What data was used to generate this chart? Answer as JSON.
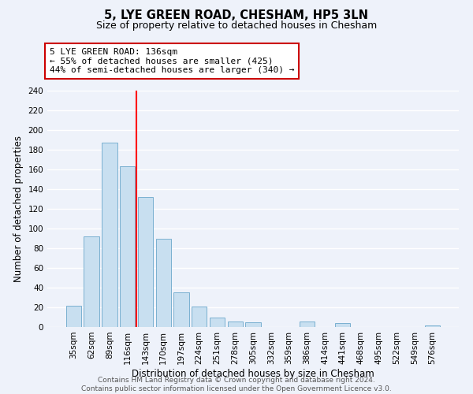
{
  "title": "5, LYE GREEN ROAD, CHESHAM, HP5 3LN",
  "subtitle": "Size of property relative to detached houses in Chesham",
  "xlabel": "Distribution of detached houses by size in Chesham",
  "ylabel": "Number of detached properties",
  "bar_labels": [
    "35sqm",
    "62sqm",
    "89sqm",
    "116sqm",
    "143sqm",
    "170sqm",
    "197sqm",
    "224sqm",
    "251sqm",
    "278sqm",
    "305sqm",
    "332sqm",
    "359sqm",
    "386sqm",
    "414sqm",
    "441sqm",
    "468sqm",
    "495sqm",
    "522sqm",
    "549sqm",
    "576sqm"
  ],
  "bar_heights": [
    22,
    92,
    187,
    163,
    132,
    90,
    35,
    21,
    10,
    6,
    5,
    0,
    0,
    6,
    0,
    4,
    0,
    0,
    0,
    0,
    2
  ],
  "bar_color": "#c8dff0",
  "bar_edge_color": "#7ab0d0",
  "property_line_index": 3.5,
  "annotation_text1": "5 LYE GREEN ROAD: 136sqm",
  "annotation_text2": "← 55% of detached houses are smaller (425)",
  "annotation_text3": "44% of semi-detached houses are larger (340) →",
  "annotation_box_facecolor": "#ffffff",
  "annotation_box_edgecolor": "#cc0000",
  "ylim": [
    0,
    240
  ],
  "yticks": [
    0,
    20,
    40,
    60,
    80,
    100,
    120,
    140,
    160,
    180,
    200,
    220,
    240
  ],
  "footer_line1": "Contains HM Land Registry data © Crown copyright and database right 2024.",
  "footer_line2": "Contains public sector information licensed under the Open Government Licence v3.0.",
  "background_color": "#eef2fa",
  "grid_color": "#ffffff",
  "title_fontsize": 10.5,
  "subtitle_fontsize": 9,
  "ylabel_fontsize": 8.5,
  "xlabel_fontsize": 8.5,
  "tick_fontsize": 7.5,
  "annotation_fontsize": 8,
  "footer_fontsize": 6.5
}
